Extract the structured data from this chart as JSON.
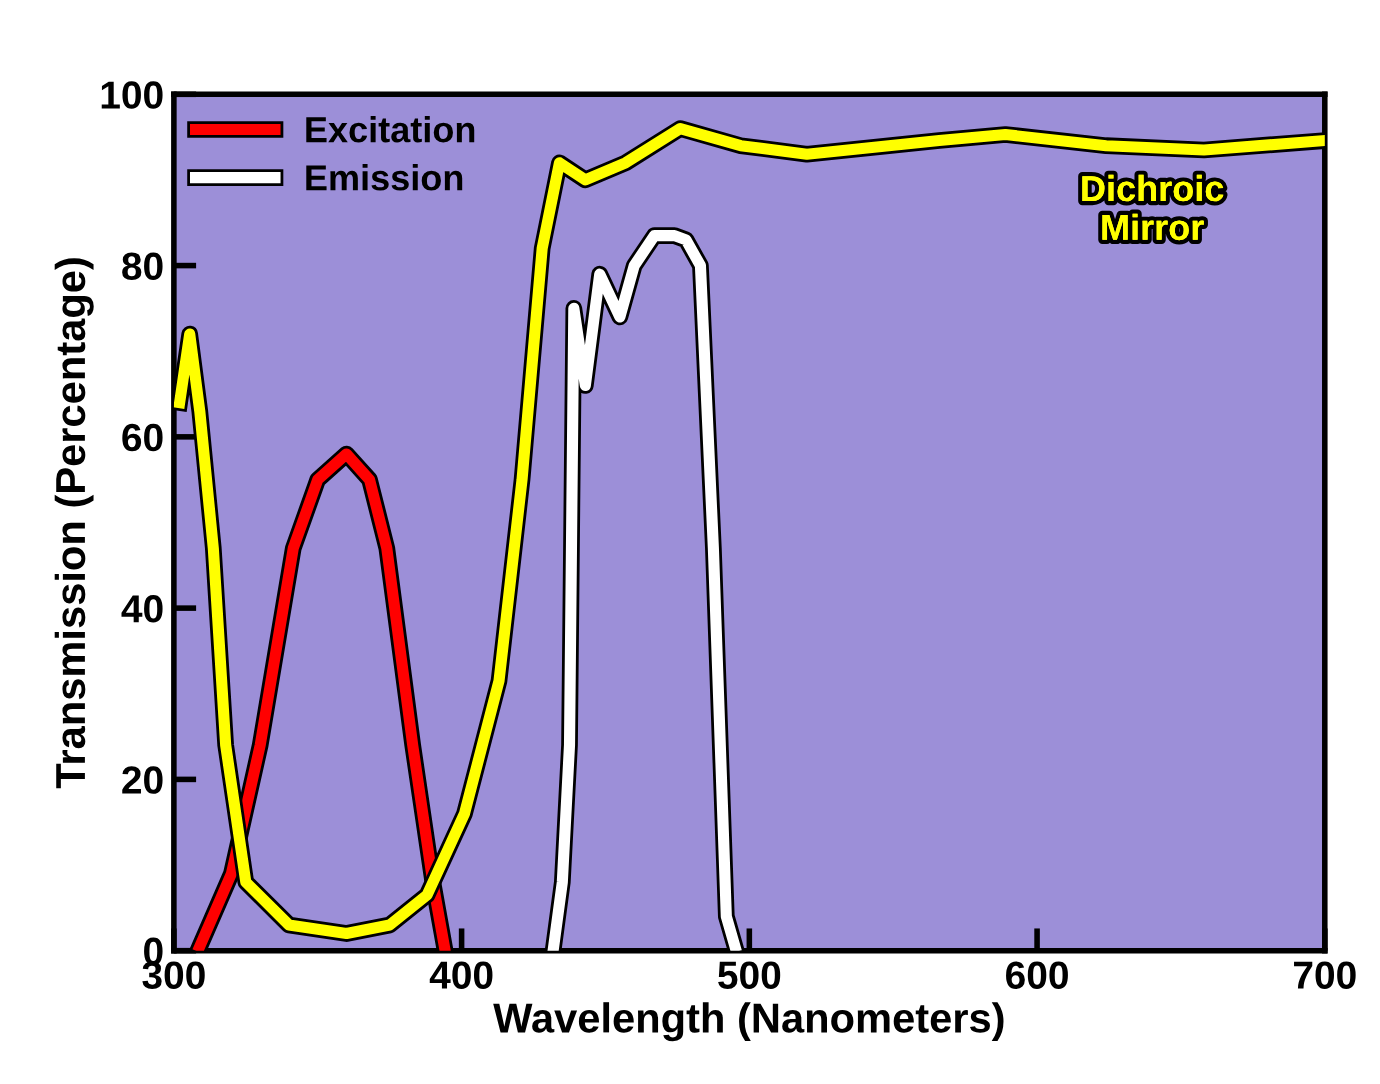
{
  "chart_data": {
    "type": "line",
    "xlabel": "Wavelength (Nanometers)",
    "ylabel": "Transmission (Percentage)",
    "xlim": [
      300,
      700
    ],
    "ylim": [
      0,
      100
    ],
    "xticks": [
      300,
      400,
      500,
      600,
      700
    ],
    "yticks": [
      0,
      20,
      40,
      60,
      80,
      100
    ],
    "legend": "top left",
    "grid": false,
    "marker": "none",
    "line_style": "solid",
    "series": [
      {
        "name": "Excitation",
        "color": "#ff0000",
        "x": [
          309,
          320,
          330,
          341.5,
          350,
          360,
          368,
          374,
          383,
          390,
          394
        ],
        "values": [
          0.5,
          9,
          24,
          47,
          55,
          58,
          55,
          47,
          24,
          8,
          0.5
        ]
      },
      {
        "name": "Emission",
        "color": "#ffffff",
        "x": [
          432,
          435,
          437.5,
          439,
          443,
          448,
          455,
          460,
          467,
          474,
          478,
          483,
          487.5,
          492,
          495
        ],
        "values": [
          0.5,
          8,
          24,
          75,
          66,
          79,
          74,
          80,
          83.5,
          83.5,
          83,
          80,
          47,
          4,
          0.5
        ]
      },
      {
        "name": "Dichroic Mirror",
        "color": "#ffff00",
        "x": [
          302,
          305.5,
          309,
          313.7,
          318,
          325,
          340,
          360,
          375,
          388,
          401,
          413,
          421,
          428,
          434,
          443,
          457,
          476,
          497,
          520,
          566,
          589,
          624,
          658,
          700
        ],
        "values": [
          64,
          72,
          63,
          47,
          24,
          8,
          3,
          2,
          3,
          6.5,
          16,
          31.5,
          55,
          82,
          92,
          90,
          92,
          96,
          94,
          93,
          94.6,
          95.3,
          94,
          93.5,
          94.6
        ]
      }
    ]
  }
}
